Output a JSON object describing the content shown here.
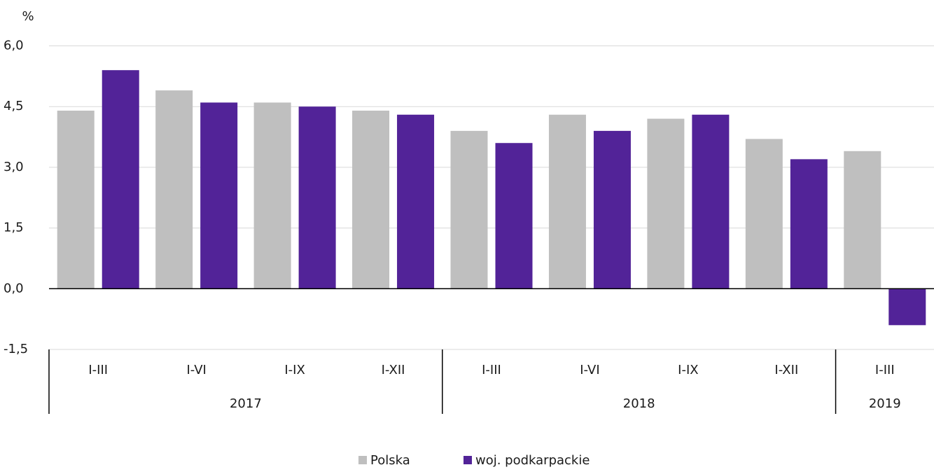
{
  "chart_data": {
    "type": "bar",
    "y_unit": "%",
    "groups": [
      {
        "label": "2017",
        "categories": [
          "I-III",
          "I-VI",
          "I-IX",
          "I-XII"
        ]
      },
      {
        "label": "2018",
        "categories": [
          "I-III",
          "I-VI",
          "I-IX",
          "I-XII"
        ]
      },
      {
        "label": "2019",
        "categories": [
          "I-III"
        ]
      }
    ],
    "series": [
      {
        "name": "Polska",
        "color": "#bfbfbf",
        "values": [
          4.4,
          4.9,
          4.6,
          4.4,
          3.9,
          4.3,
          4.2,
          3.7,
          3.4
        ]
      },
      {
        "name": "woj. podkarpackie",
        "color": "#522398",
        "values": [
          5.4,
          4.6,
          4.5,
          4.3,
          3.6,
          3.9,
          4.3,
          3.2,
          -0.9
        ]
      }
    ],
    "ylim": [
      -1.5,
      6.0
    ],
    "yticks": [
      {
        "value": -1.5,
        "label": "-1,5"
      },
      {
        "value": 0,
        "label": "0,0"
      },
      {
        "value": 1.5,
        "label": "1,5"
      },
      {
        "value": 3.0,
        "label": "3,0"
      },
      {
        "value": 4.5,
        "label": "4,5"
      },
      {
        "value": 6.0,
        "label": "6,0"
      }
    ],
    "grid": true,
    "legend": "bottom"
  }
}
